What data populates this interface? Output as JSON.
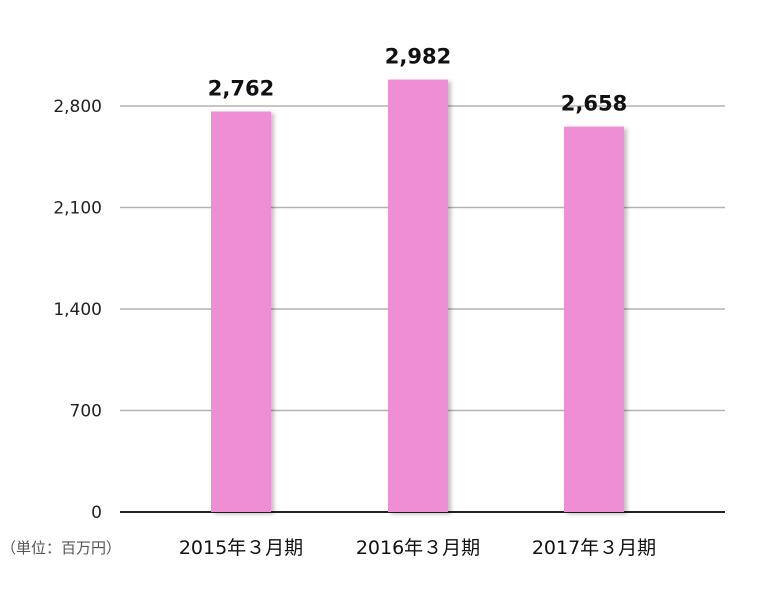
{
  "chart_data": {
    "type": "bar",
    "categories": [
      "2015年３月期",
      "2016年３月期",
      "2017年３月期"
    ],
    "values": [
      2762,
      2982,
      2658
    ],
    "value_labels": [
      "2,762",
      "2,982",
      "2,658"
    ],
    "yticks": [
      0,
      700,
      1400,
      2100,
      2800
    ],
    "ytick_labels": [
      "0",
      "700",
      "1,400",
      "2,100",
      "2,800"
    ],
    "ylim": [
      0,
      2800
    ],
    "unit_label": "（単位：百万円）",
    "title": "",
    "xlabel": "",
    "ylabel": "",
    "grid": true,
    "bar_color": "#ee8fd5",
    "grid_color": "#b3b3b3"
  }
}
